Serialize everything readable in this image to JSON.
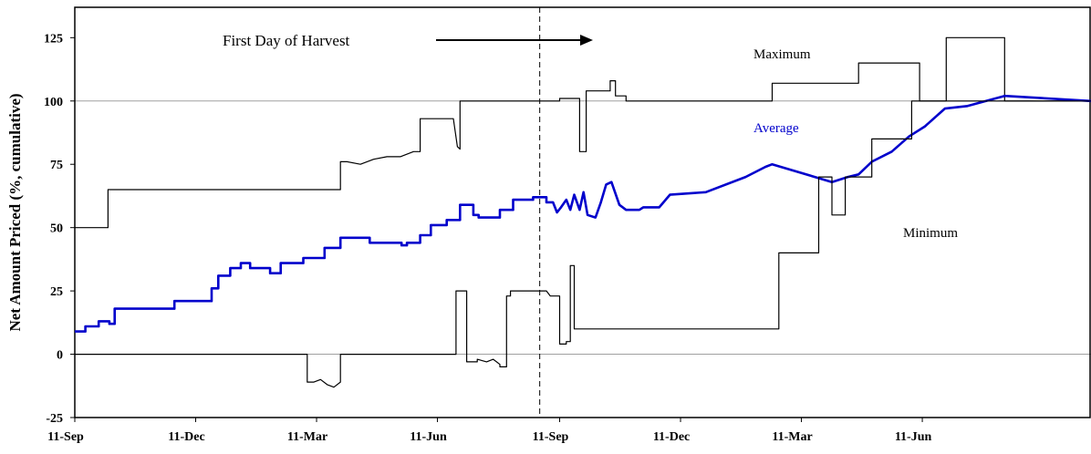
{
  "chart_data": {
    "type": "line",
    "ylabel": "Net Amount Priced (%, cumulative)",
    "xlabel": "",
    "title": "",
    "ylim": [
      -25,
      137
    ],
    "y_ticks": [
      -25,
      0,
      25,
      50,
      75,
      100,
      125
    ],
    "y_tick_labels": [
      "-25",
      "0",
      "25",
      "50",
      "75",
      "100",
      "125"
    ],
    "xlim": [
      0,
      765
    ],
    "x_ticks": [
      0,
      91,
      182,
      273,
      365,
      456,
      547,
      638
    ],
    "x_tick_labels": [
      "11-Sep",
      "11-Dec",
      "11-Mar",
      "11-Jun",
      "11-Sep",
      "11-Dec",
      "11-Mar",
      "11-Jun"
    ],
    "gridlines_y": [
      0,
      100
    ],
    "harvest_day": 350,
    "annotations": {
      "harvest": "First Day of Harvest",
      "maximum": "Maximum",
      "average": "Average",
      "minimum": "Minimum"
    },
    "colors": {
      "average": "#0000cc",
      "maximum": "#000000",
      "minimum": "#000000",
      "grid": "#a0a0a0"
    },
    "series": [
      {
        "name": "Maximum",
        "x": [
          0,
          25,
          25,
          200,
          200,
          205,
          215,
          225,
          235,
          245,
          255,
          260,
          260,
          280,
          285,
          288,
          290,
          290,
          365,
          365,
          380,
          380,
          385,
          385,
          400,
          403,
          403,
          407,
          407,
          415,
          415,
          525,
          525,
          590,
          590,
          605,
          605,
          610,
          610,
          636,
          636,
          656,
          656,
          700,
          700,
          765
        ],
        "y": [
          50,
          50,
          65,
          65,
          76,
          76,
          75,
          77,
          78,
          78,
          80,
          80,
          93,
          93,
          93,
          82,
          81,
          100,
          100,
          101,
          101,
          80,
          80,
          104,
          104,
          104,
          108,
          108,
          102,
          102,
          100,
          100,
          107,
          107,
          115,
          115,
          115,
          115,
          115,
          115,
          100,
          100,
          125,
          125,
          100,
          100
        ]
      },
      {
        "name": "Average",
        "x": [
          0,
          8,
          8,
          18,
          18,
          26,
          26,
          30,
          30,
          75,
          75,
          103,
          103,
          108,
          108,
          117,
          117,
          125,
          125,
          132,
          132,
          147,
          147,
          155,
          155,
          172,
          172,
          188,
          188,
          200,
          200,
          222,
          222,
          246,
          246,
          250,
          250,
          260,
          260,
          268,
          268,
          280,
          280,
          290,
          290,
          300,
          300,
          304,
          304,
          320,
          320,
          330,
          330,
          345,
          345,
          355,
          355,
          360,
          363,
          366,
          370,
          373,
          376,
          380,
          383,
          386,
          392,
          396,
          400,
          404,
          410,
          415,
          418,
          425,
          428,
          440,
          448,
          448,
          475,
          475,
          505,
          505,
          520,
          520,
          525,
          525,
          570,
          570,
          582,
          582,
          590,
          590,
          600,
          600,
          615,
          615,
          628,
          628,
          640,
          640,
          655,
          655,
          672,
          672,
          700,
          700,
          765
        ],
        "y": [
          9,
          9,
          11,
          11,
          13,
          13,
          12,
          12,
          18,
          18,
          21,
          21,
          26,
          26,
          31,
          31,
          34,
          34,
          36,
          36,
          34,
          34,
          32,
          32,
          36,
          36,
          38,
          38,
          42,
          42,
          46,
          46,
          44,
          44,
          43,
          43,
          44,
          44,
          47,
          47,
          51,
          51,
          53,
          53,
          59,
          59,
          55,
          55,
          54,
          54,
          57,
          57,
          61,
          61,
          62,
          62,
          60,
          60,
          56,
          58,
          61,
          57,
          63,
          57,
          64,
          55,
          54,
          60,
          67,
          68,
          59,
          57,
          57,
          57,
          58,
          58,
          63,
          63,
          64,
          64,
          70,
          70,
          74,
          74,
          75,
          75,
          68,
          68,
          70,
          70,
          71,
          71,
          76,
          76,
          80,
          80,
          86,
          86,
          90,
          90,
          97,
          97,
          98,
          98,
          102,
          102,
          100
        ]
      },
      {
        "name": "Minimum",
        "x": [
          0,
          175,
          175,
          180,
          185,
          190,
          195,
          200,
          200,
          287,
          287,
          295,
          295,
          303,
          303,
          310,
          315,
          320,
          320,
          325,
          325,
          328,
          328,
          355,
          358,
          365,
          365,
          370,
          370,
          373,
          373,
          376,
          376,
          530,
          530,
          560,
          560,
          570,
          570,
          580,
          580,
          600,
          600,
          630,
          630,
          700,
          700,
          765
        ],
        "y": [
          0,
          0,
          -11,
          -11,
          -10,
          -12,
          -13,
          -11,
          0,
          0,
          25,
          25,
          -3,
          -3,
          -2,
          -3,
          -2,
          -4,
          -5,
          -5,
          23,
          23,
          25,
          25,
          23,
          23,
          4,
          4,
          5,
          5,
          35,
          35,
          10,
          10,
          40,
          40,
          70,
          70,
          55,
          55,
          70,
          70,
          85,
          85,
          100,
          100,
          100,
          100
        ]
      }
    ]
  }
}
